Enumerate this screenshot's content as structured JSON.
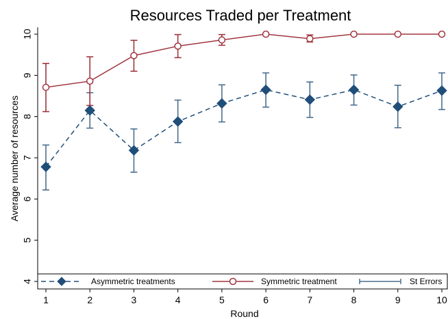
{
  "chart_data": {
    "type": "line",
    "title": "Resources Traded per Treatment",
    "xlabel": "Round",
    "ylabel": "Average number of resources",
    "x": [
      1,
      2,
      3,
      4,
      5,
      6,
      7,
      8,
      9,
      10
    ],
    "xlim": [
      1,
      10
    ],
    "ylim": [
      4,
      10
    ],
    "yticks": [
      4,
      5,
      6,
      7,
      8,
      9,
      10
    ],
    "grid": false,
    "legend_position": "bottom",
    "series": [
      {
        "name": "Asymmetric treatments",
        "color": "#1f4e79",
        "line_style": "dashed",
        "marker": "diamond",
        "values": [
          6.78,
          8.15,
          7.18,
          7.88,
          8.32,
          8.65,
          8.41,
          8.65,
          8.24,
          8.63
        ],
        "err_low": [
          6.22,
          7.72,
          6.65,
          7.37,
          7.87,
          8.23,
          7.98,
          8.28,
          7.73,
          8.17
        ],
        "err_high": [
          7.31,
          8.58,
          7.7,
          8.4,
          8.77,
          9.06,
          8.84,
          9.01,
          8.76,
          9.06
        ]
      },
      {
        "name": "Symmetric treatment",
        "color": "#a0353f",
        "line_style": "solid",
        "marker": "circle",
        "values": [
          8.71,
          8.86,
          9.48,
          9.71,
          9.86,
          10.0,
          9.89,
          10.0,
          10.0,
          10.0
        ],
        "err_low": [
          8.12,
          8.27,
          9.1,
          9.43,
          9.73,
          10.0,
          9.81,
          10.0,
          10.0,
          10.0
        ],
        "err_high": [
          9.29,
          9.45,
          9.85,
          9.99,
          9.99,
          10.0,
          9.98,
          10.0,
          10.0,
          10.0
        ]
      }
    ],
    "legend": [
      {
        "label": "Asymmetric treatments",
        "symbol": "asym"
      },
      {
        "label": "Symmetric treatment",
        "symbol": "sym"
      },
      {
        "label": "St Errors",
        "symbol": "err"
      }
    ],
    "errbar_color": "#4a6f8f"
  }
}
